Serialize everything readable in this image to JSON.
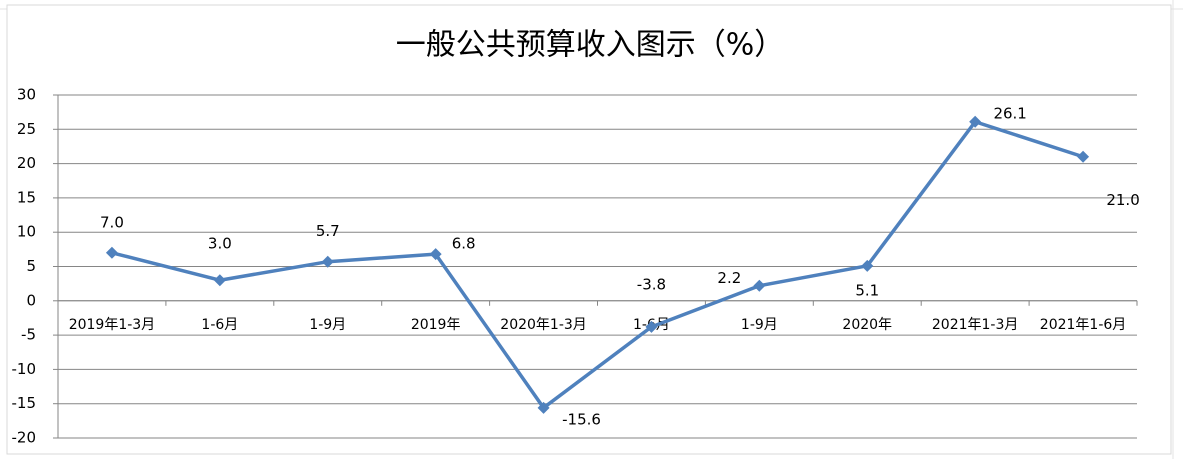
{
  "chart_data": {
    "type": "line",
    "title": "一般公共预算收入图示（%）",
    "categories": [
      "2019年1-3月",
      "1-6月",
      "1-9月",
      "2019年",
      "2020年1-3月",
      "1-6月",
      "1-9月",
      "2020年",
      "2021年1-3月",
      "2021年1-6月"
    ],
    "values": [
      7.0,
      3.0,
      5.7,
      6.8,
      -15.6,
      -3.8,
      2.2,
      5.1,
      26.1,
      21.0
    ],
    "value_labels": [
      "7.0",
      "3.0",
      "5.7",
      "6.8",
      "-15.6",
      "-3.8",
      "2.2",
      "5.1",
      "26.1",
      "21.0"
    ],
    "color": "#4f81bd",
    "ylim": [
      -20,
      30
    ],
    "yticks": [
      -20,
      -15,
      -10,
      -5,
      0,
      5,
      10,
      15,
      20,
      25,
      30
    ],
    "grid": true
  }
}
